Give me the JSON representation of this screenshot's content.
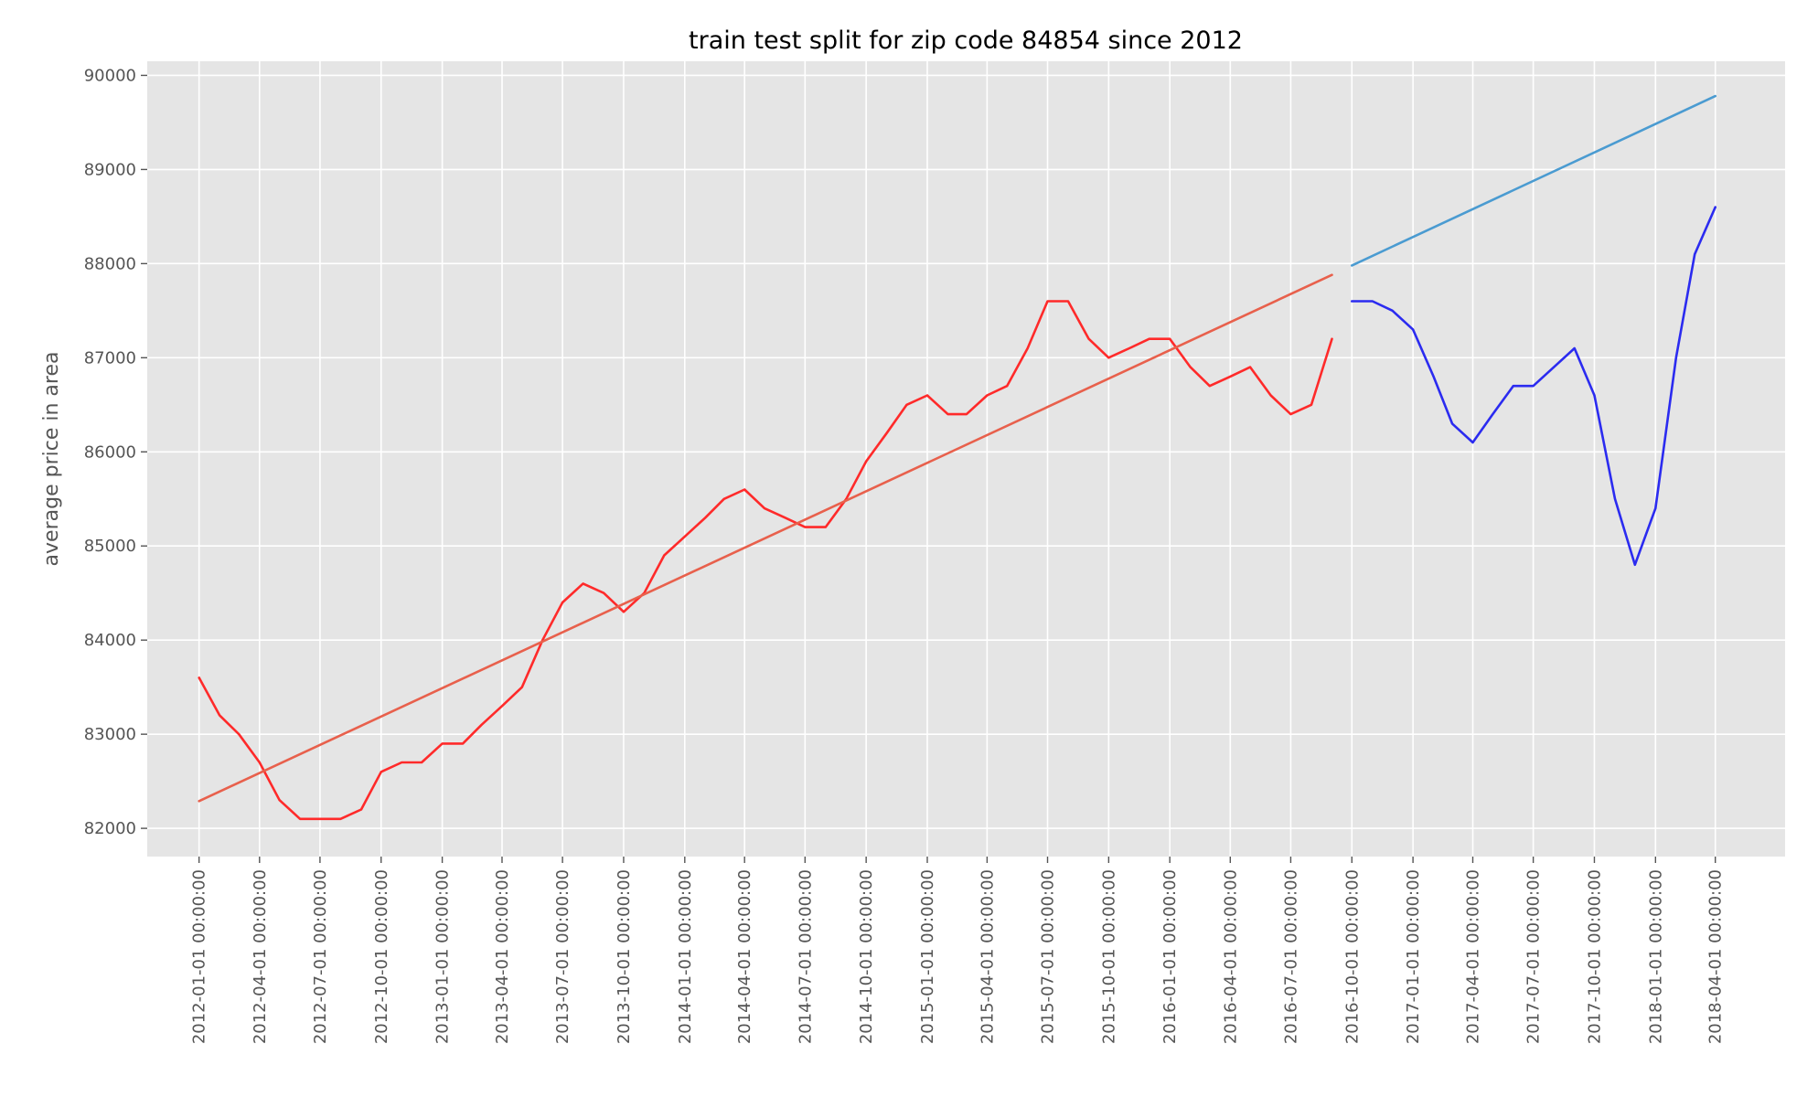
{
  "chart_data": {
    "type": "line",
    "title": "train test split for zip code 84854 since 2012",
    "xlabel": "",
    "ylabel": "average price in area",
    "grid": true,
    "ylim": [
      81700,
      90150
    ],
    "xlim": [
      "2011-10-15",
      "2018-07-15"
    ],
    "y_ticks": [
      82000,
      83000,
      84000,
      85000,
      86000,
      87000,
      88000,
      89000,
      90000
    ],
    "x_ticks": [
      "2012-01-01 00:00:00",
      "2012-04-01 00:00:00",
      "2012-07-01 00:00:00",
      "2012-10-01 00:00:00",
      "2013-01-01 00:00:00",
      "2013-04-01 00:00:00",
      "2013-07-01 00:00:00",
      "2013-10-01 00:00:00",
      "2014-01-01 00:00:00",
      "2014-04-01 00:00:00",
      "2014-07-01 00:00:00",
      "2014-10-01 00:00:00",
      "2015-01-01 00:00:00",
      "2015-04-01 00:00:00",
      "2015-07-01 00:00:00",
      "2015-10-01 00:00:00",
      "2016-01-01 00:00:00",
      "2016-04-01 00:00:00",
      "2016-07-01 00:00:00",
      "2016-10-01 00:00:00",
      "2017-01-01 00:00:00",
      "2017-04-01 00:00:00",
      "2017-07-01 00:00:00",
      "2017-10-01 00:00:00",
      "2018-01-01 00:00:00",
      "2018-04-01 00:00:00"
    ],
    "series": [
      {
        "color": "#ff2a2a",
        "x": [
          "2012-01-01",
          "2012-02-01",
          "2012-03-01",
          "2012-04-01",
          "2012-05-01",
          "2012-06-01",
          "2012-07-01",
          "2012-08-01",
          "2012-09-01",
          "2012-10-01",
          "2012-11-01",
          "2012-12-01",
          "2013-01-01",
          "2013-02-01",
          "2013-03-01",
          "2013-04-01",
          "2013-05-01",
          "2013-06-01",
          "2013-07-01",
          "2013-08-01",
          "2013-09-01",
          "2013-10-01",
          "2013-11-01",
          "2013-12-01",
          "2014-01-01",
          "2014-02-01",
          "2014-03-01",
          "2014-04-01",
          "2014-05-01",
          "2014-06-01",
          "2014-07-01",
          "2014-08-01",
          "2014-09-01",
          "2014-10-01",
          "2014-11-01",
          "2014-12-01",
          "2015-01-01",
          "2015-02-01",
          "2015-03-01",
          "2015-04-01",
          "2015-05-01",
          "2015-06-01",
          "2015-07-01",
          "2015-08-01",
          "2015-09-01",
          "2015-10-01",
          "2015-11-01",
          "2015-12-01",
          "2016-01-01",
          "2016-02-01",
          "2016-03-01",
          "2016-04-01",
          "2016-05-01",
          "2016-06-01",
          "2016-07-01",
          "2016-08-01",
          "2016-09-01"
        ],
        "values": [
          83600,
          83200,
          83000,
          82700,
          82300,
          82100,
          82100,
          82100,
          82200,
          82600,
          82700,
          82700,
          82900,
          82900,
          83100,
          83300,
          83500,
          84000,
          84400,
          84600,
          84500,
          84300,
          84500,
          84900,
          85100,
          85300,
          85500,
          85600,
          85400,
          85300,
          85200,
          85200,
          85500,
          85900,
          86200,
          86500,
          86600,
          86400,
          86400,
          86600,
          86700,
          87100,
          87600,
          87600,
          87200,
          87000,
          87100,
          87200,
          87200,
          86900,
          86700,
          86800,
          86900,
          86600,
          86400,
          86500,
          87200
        ]
      },
      {
        "color": "#e8604c",
        "x": [
          "2012-01-01",
          "2016-09-01"
        ],
        "values": [
          82290,
          87880
        ]
      },
      {
        "color": "#2b2bf0",
        "x": [
          "2016-10-01",
          "2016-11-01",
          "2016-12-01",
          "2017-01-01",
          "2017-02-01",
          "2017-03-01",
          "2017-04-01",
          "2017-05-01",
          "2017-06-01",
          "2017-07-01",
          "2017-08-01",
          "2017-09-01",
          "2017-10-01",
          "2017-11-01",
          "2017-12-01",
          "2018-01-01",
          "2018-02-01",
          "2018-03-01",
          "2018-04-01"
        ],
        "values": [
          87600,
          87600,
          87500,
          87300,
          86800,
          86300,
          86100,
          86400,
          86700,
          86700,
          86900,
          87100,
          86600,
          85500,
          84800,
          85400,
          87000,
          88100,
          88600
        ]
      },
      {
        "color": "#4a9bd1",
        "x": [
          "2016-10-01",
          "2018-04-01"
        ],
        "values": [
          87980,
          89780
        ]
      }
    ]
  }
}
